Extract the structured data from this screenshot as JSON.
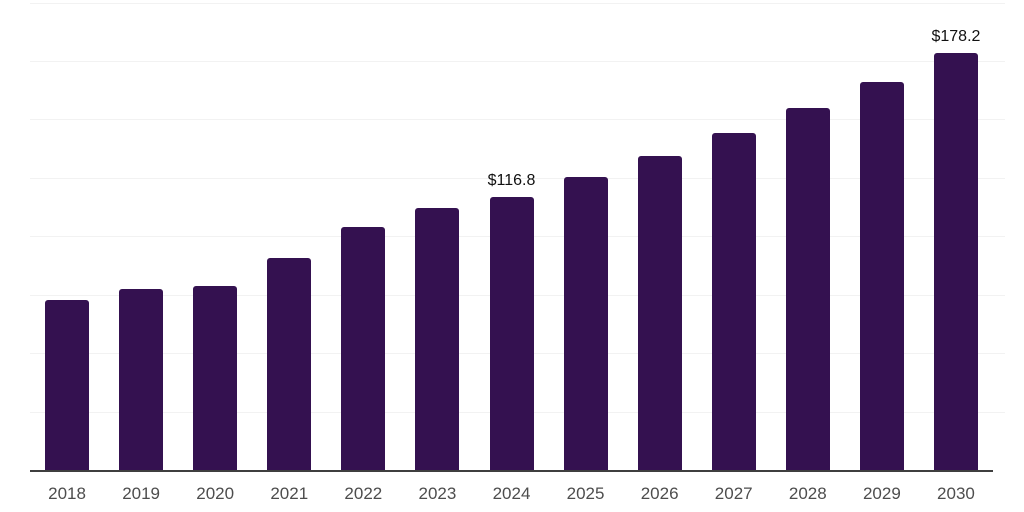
{
  "chart_data": {
    "type": "bar",
    "title": "",
    "xlabel": "",
    "ylabel": "",
    "categories": [
      "2018",
      "2019",
      "2020",
      "2021",
      "2022",
      "2023",
      "2024",
      "2025",
      "2026",
      "2027",
      "2028",
      "2029",
      "2030"
    ],
    "values": [
      72.9,
      77.6,
      78.9,
      90.8,
      104.0,
      111.9,
      116.8,
      125.3,
      134.4,
      144.2,
      154.7,
      166.0,
      178.2
    ],
    "value_labels": [
      {
        "category": "2024",
        "text": "$116.8"
      },
      {
        "category": "2030",
        "text": "$178.2"
      }
    ],
    "ylim": [
      0,
      200
    ],
    "grid_step": 25,
    "grid": "horizontal-only",
    "legend": "none",
    "y_axis_tick_labels": "none",
    "colors": {
      "bar": "#341150",
      "gridline": "#f2f2f2",
      "axis_line": "#3f3f3f",
      "tick_label": "#4d4d4d",
      "value_label": "#111111",
      "background": "#ffffff"
    }
  }
}
